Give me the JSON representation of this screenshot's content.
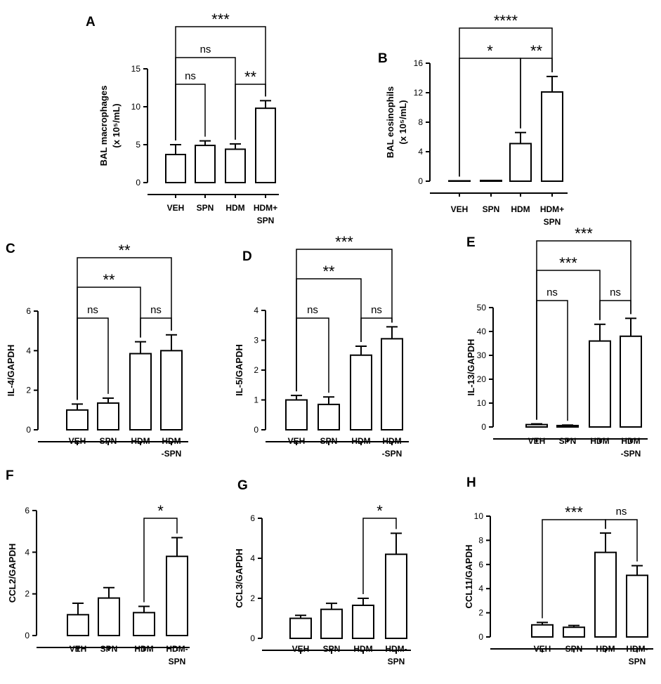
{
  "chart_data": [
    {
      "letter": "A",
      "type": "bar",
      "ylabel_lines": [
        "BAL macrophages",
        "(x 10⁵/mL)"
      ],
      "categories": [
        [
          "VEH"
        ],
        [
          "SPN"
        ],
        [
          "HDM"
        ],
        [
          "HDM+",
          "SPN"
        ]
      ],
      "values": [
        3.7,
        4.9,
        4.4,
        9.8
      ],
      "errors": [
        1.3,
        0.6,
        0.7,
        1.0
      ],
      "ylim": [
        0,
        15
      ],
      "yticks": [
        0,
        5,
        10,
        15
      ],
      "comparisons": [
        {
          "from": 0,
          "to": 1,
          "label": "ns"
        },
        {
          "from": 2,
          "to": 3,
          "label": "**"
        },
        {
          "from": 0,
          "to": 2,
          "label": "ns"
        },
        {
          "from": 0,
          "to": 3,
          "label": "***"
        }
      ]
    },
    {
      "letter": "B",
      "type": "bar",
      "ylabel_lines": [
        "BAL eosinophils",
        "(x 10⁵/mL)"
      ],
      "categories": [
        [
          "VEH"
        ],
        [
          "SPN"
        ],
        [
          "HDM"
        ],
        [
          "HDM+",
          "SPN"
        ]
      ],
      "values": [
        0.05,
        0.1,
        5.1,
        12.1
      ],
      "errors": [
        0,
        0,
        1.5,
        2.1
      ],
      "ylim": [
        0,
        16
      ],
      "yticks": [
        0,
        4,
        8,
        12,
        16
      ],
      "comparisons": [
        {
          "from": 2,
          "to": 3,
          "label": "**"
        },
        {
          "from": 0,
          "to": 2,
          "label": "*"
        },
        {
          "from": 0,
          "to": 3,
          "label": "****"
        }
      ]
    },
    {
      "letter": "C",
      "type": "bar",
      "ylabel_lines": [
        "IL-4/GAPDH"
      ],
      "categories": [
        [
          "VEH"
        ],
        [
          "SPN"
        ],
        [
          "HDM"
        ],
        [
          "HDM",
          "-SPN"
        ]
      ],
      "values": [
        1.0,
        1.35,
        3.85,
        4.0
      ],
      "errors": [
        0.3,
        0.25,
        0.6,
        0.8
      ],
      "ylim": [
        0,
        6
      ],
      "yticks": [
        0,
        2,
        4,
        6
      ],
      "comparisons": [
        {
          "from": 0,
          "to": 1,
          "label": "ns"
        },
        {
          "from": 2,
          "to": 3,
          "label": "ns"
        },
        {
          "from": 0,
          "to": 2,
          "label": "**"
        },
        {
          "from": 0,
          "to": 3,
          "label": "**"
        }
      ]
    },
    {
      "letter": "D",
      "type": "bar",
      "ylabel_lines": [
        "IL-5/GAPDH"
      ],
      "categories": [
        [
          "VEH"
        ],
        [
          "SPN"
        ],
        [
          "HDM"
        ],
        [
          "HDM",
          "-SPN"
        ]
      ],
      "values": [
        1.0,
        0.85,
        2.5,
        3.05
      ],
      "errors": [
        0.15,
        0.25,
        0.3,
        0.4
      ],
      "ylim": [
        0,
        4
      ],
      "yticks": [
        0,
        1,
        2,
        3,
        4
      ],
      "comparisons": [
        {
          "from": 0,
          "to": 1,
          "label": "ns"
        },
        {
          "from": 2,
          "to": 3,
          "label": "ns"
        },
        {
          "from": 0,
          "to": 2,
          "label": "**"
        },
        {
          "from": 0,
          "to": 3,
          "label": "***"
        }
      ]
    },
    {
      "letter": "E",
      "type": "bar",
      "ylabel_lines": [
        "IL-13/GAPDH"
      ],
      "categories": [
        [
          "VEH"
        ],
        [
          "SPN"
        ],
        [
          "HDM"
        ],
        [
          "HDM",
          "-SPN"
        ]
      ],
      "values": [
        1.0,
        0.6,
        36,
        38
      ],
      "errors": [
        0.3,
        0.2,
        7,
        7.5
      ],
      "ylim": [
        0,
        50
      ],
      "yticks": [
        0,
        10,
        20,
        30,
        40,
        50
      ],
      "comparisons": [
        {
          "from": 0,
          "to": 1,
          "label": "ns"
        },
        {
          "from": 2,
          "to": 3,
          "label": "ns"
        },
        {
          "from": 0,
          "to": 2,
          "label": "***"
        },
        {
          "from": 0,
          "to": 3,
          "label": "***"
        }
      ]
    },
    {
      "letter": "F",
      "type": "bar",
      "ylabel_lines": [
        "CCL2/GAPDH"
      ],
      "categories": [
        [
          "VEH"
        ],
        [
          "SPN"
        ],
        [
          "HDM"
        ],
        [
          "HDM-",
          "SPN"
        ]
      ],
      "values": [
        1.0,
        1.8,
        1.1,
        3.8
      ],
      "errors": [
        0.55,
        0.5,
        0.3,
        0.9
      ],
      "ylim": [
        0,
        6
      ],
      "yticks": [
        0,
        2,
        4,
        6
      ],
      "comparisons": [
        {
          "from": 2,
          "to": 3,
          "label": "*"
        }
      ]
    },
    {
      "letter": "G",
      "type": "bar",
      "ylabel_lines": [
        "CCL3/GAPDH"
      ],
      "categories": [
        [
          "VEH"
        ],
        [
          "SPN"
        ],
        [
          "HDM"
        ],
        [
          "HDM-",
          "SPN"
        ]
      ],
      "values": [
        1.0,
        1.45,
        1.65,
        4.2
      ],
      "errors": [
        0.15,
        0.3,
        0.35,
        1.05
      ],
      "ylim": [
        0,
        6
      ],
      "yticks": [
        0,
        2,
        4,
        6
      ],
      "comparisons": [
        {
          "from": 2,
          "to": 3,
          "label": "*"
        }
      ]
    },
    {
      "letter": "H",
      "type": "bar",
      "ylabel_lines": [
        "CCL11/GAPDH"
      ],
      "categories": [
        [
          "VEH"
        ],
        [
          "SPN"
        ],
        [
          "HDM"
        ],
        [
          "HDM-",
          "SPN"
        ]
      ],
      "values": [
        1.0,
        0.8,
        7.0,
        5.1
      ],
      "errors": [
        0.2,
        0.15,
        1.6,
        0.8
      ],
      "ylim": [
        0,
        10
      ],
      "yticks": [
        0,
        2,
        4,
        6,
        8,
        10
      ],
      "comparisons": [
        {
          "from": 0,
          "to": 2,
          "label": "***"
        },
        {
          "from": 2,
          "to": 3,
          "label": "ns"
        }
      ]
    }
  ]
}
